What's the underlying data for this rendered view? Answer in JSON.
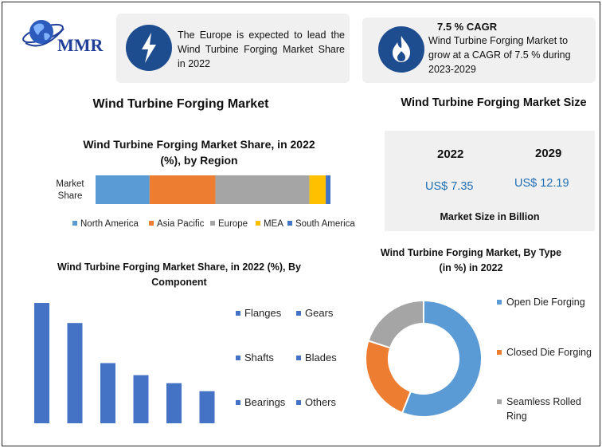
{
  "logo": {
    "text": "MMR",
    "icon": "globe-icon"
  },
  "info_left": {
    "icon": "lightning-icon",
    "text": "The Europe is expected to lead the Wind Turbine Forging Market Share in 2022"
  },
  "info_right": {
    "icon": "flame-icon",
    "title": "7.5 % CAGR",
    "text": "Wind Turbine Forging Market to grow at a CAGR of 7.5 % during 2023-2029"
  },
  "main_title": "Wind Turbine Forging Market",
  "market_size": {
    "title": "Wind Turbine Forging Market Size",
    "year_a": "2022",
    "value_a": "US$ 7.35",
    "year_b": "2029",
    "value_b": "US$ 12.19",
    "footer": "Market Size in Billion"
  },
  "colors": {
    "accent_blue": "#1e4d8f",
    "value_blue": "#1f6fb5",
    "series_blue": "#4472c4",
    "light_blue": "#5b9bd5",
    "orange": "#ed7d31",
    "gray": "#a5a5a5",
    "yellow": "#ffc000"
  },
  "chart_data": [
    {
      "type": "bar",
      "orientation": "horizontal-stacked",
      "title": "Wind Turbine Forging Market Share, in 2022 (%), by Region",
      "categories": [
        "Market Share"
      ],
      "series": [
        {
          "name": "North America",
          "values": [
            23
          ],
          "color": "#5b9bd5"
        },
        {
          "name": "Asia Pacific",
          "values": [
            28
          ],
          "color": "#ed7d31"
        },
        {
          "name": "Europe",
          "values": [
            40
          ],
          "color": "#a5a5a5"
        },
        {
          "name": "MEA",
          "values": [
            7
          ],
          "color": "#ffc000"
        },
        {
          "name": "South America",
          "values": [
            2
          ],
          "color": "#4472c4"
        }
      ],
      "xlim": [
        0,
        100
      ],
      "legend": "bottom"
    },
    {
      "type": "bar",
      "title": "Wind Turbine Forging Market Share, in 2022 (%), By Component",
      "categories": [
        "Flanges",
        "Gears",
        "Shafts",
        "Blades",
        "Bearings",
        "Others"
      ],
      "values": [
        30,
        25,
        15,
        12,
        10,
        8
      ],
      "ylim": [
        0,
        31
      ],
      "color": "#4472c4",
      "legend": "right"
    },
    {
      "type": "pie",
      "style": "donut",
      "title": "Wind Turbine Forging Market, By Type (in %) in 2022",
      "labels": [
        "Open Die Forging",
        "Closed Die Forging",
        "Seamless Rolled Ring"
      ],
      "values": [
        56,
        24,
        20
      ],
      "colors": [
        "#5b9bd5",
        "#ed7d31",
        "#a5a5a5"
      ],
      "legend": "right"
    }
  ]
}
